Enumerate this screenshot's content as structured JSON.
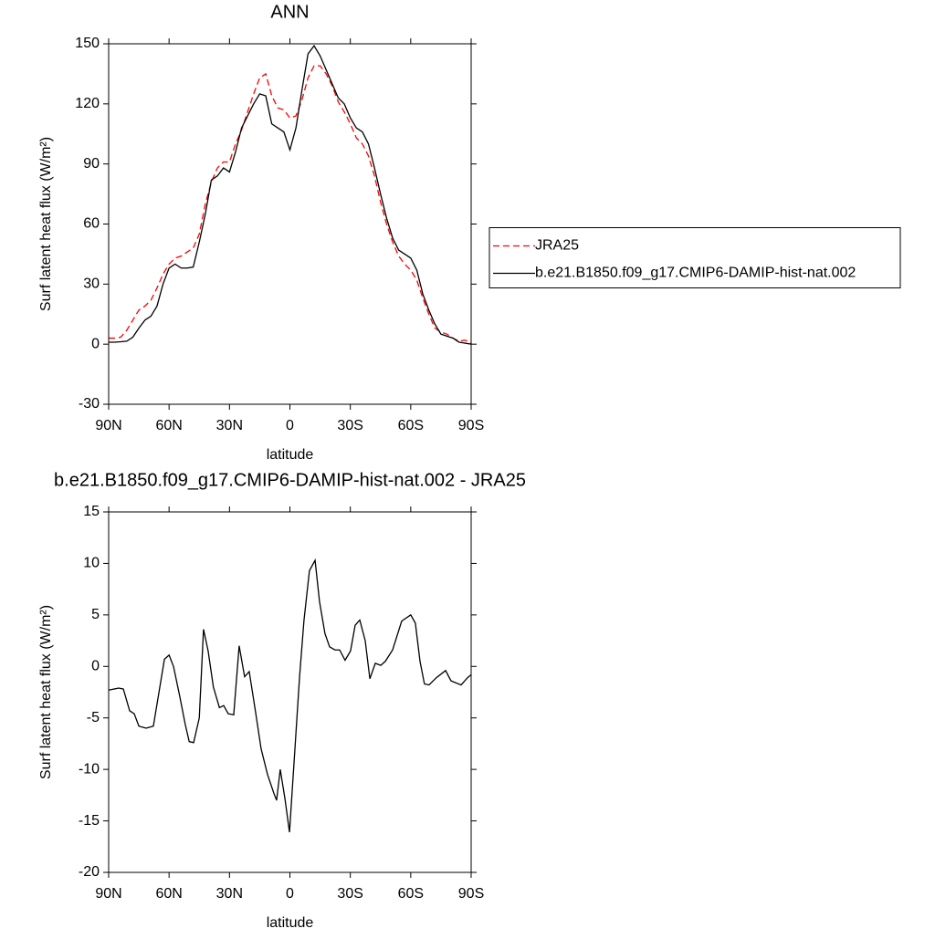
{
  "chart_data": [
    {
      "type": "line",
      "title": "ANN",
      "xlabel": "latitude",
      "ylabel": "Surf latent heat flux (W/m²)",
      "x": [
        90,
        87,
        84,
        81,
        78,
        75,
        72,
        69,
        66,
        63,
        60,
        57,
        54,
        51,
        48,
        45,
        42,
        39,
        36,
        33,
        30,
        27,
        24,
        21,
        18,
        15,
        12,
        9,
        6,
        3,
        0,
        -3,
        -6,
        -9,
        -12,
        -15,
        -18,
        -21,
        -24,
        -27,
        -30,
        -33,
        -36,
        -39,
        -42,
        -45,
        -48,
        -51,
        -54,
        -57,
        -60,
        -63,
        -66,
        -69,
        -72,
        -75,
        -78,
        -81,
        -84,
        -87,
        -90
      ],
      "xlim": [
        90,
        -90
      ],
      "xticks": [
        {
          "value": 90,
          "label": "90N"
        },
        {
          "value": 60,
          "label": "60N"
        },
        {
          "value": 30,
          "label": "30N"
        },
        0,
        {
          "value": -30,
          "label": "30S"
        },
        {
          "value": -60,
          "label": "60S"
        },
        {
          "value": -90,
          "label": "90S"
        }
      ],
      "ylim": [
        -30,
        150
      ],
      "yticks": [
        -30,
        0,
        30,
        60,
        90,
        120,
        150
      ],
      "legend": "right",
      "series": [
        {
          "name": "JRA25",
          "color": "#ff0000",
          "dash": true,
          "values": [
            3,
            3,
            3.5,
            7,
            12,
            17,
            19,
            22,
            28,
            35,
            40,
            43,
            44,
            46,
            48,
            55,
            70,
            81,
            88,
            91,
            91,
            100,
            107,
            116,
            125,
            133,
            135,
            124,
            118,
            117,
            113,
            114,
            122,
            133,
            139,
            139,
            135,
            129,
            121,
            116,
            110,
            103,
            100,
            94,
            84,
            71,
            60,
            51,
            44,
            40,
            37,
            32,
            23,
            15,
            8,
            6,
            5,
            3,
            1.5,
            2,
            0.5
          ]
        },
        {
          "name": "b.e21.B1850.f09_g17.CMIP6-DAMIP-hist-nat.002",
          "color": "#000000",
          "dash": false,
          "values": [
            1,
            1,
            1.2,
            1.5,
            3.5,
            8,
            12,
            14,
            19,
            30,
            38,
            40,
            38,
            38,
            38.5,
            51,
            65,
            82,
            84,
            88,
            86,
            96,
            108,
            114,
            120,
            125,
            124,
            110,
            108,
            106,
            97,
            108,
            127,
            145,
            149,
            144,
            137,
            130,
            123,
            120,
            113,
            108,
            106,
            100,
            88,
            75,
            63,
            53,
            47,
            45,
            43,
            37,
            25,
            17,
            10,
            5,
            4,
            3,
            1,
            0.5,
            0
          ]
        }
      ]
    },
    {
      "type": "line",
      "title": "b.e21.B1850.f09_g17.CMIP6-DAMIP-hist-nat.002 - JRA25",
      "xlabel": "latitude",
      "ylabel": "Surf latent heat flux (W/m²)",
      "x": [
        90,
        85,
        82.7,
        79.6,
        77.3,
        75,
        71.4,
        67.8,
        62.3,
        60,
        57.8,
        54.6,
        52,
        50,
        47.8,
        45,
        42.9,
        40.6,
        38,
        35,
        32.9,
        30.6,
        27.9,
        25.2,
        22.5,
        20.2,
        17,
        14.3,
        11.1,
        8,
        6.6,
        4.8,
        2.5,
        0.2,
        -2.5,
        -4.8,
        -7,
        -9.7,
        -12.5,
        -14.7,
        -17.4,
        -19.7,
        -22.4,
        -24.7,
        -27.4,
        -30.1,
        -32.4,
        -34.7,
        -37.4,
        -39.7,
        -42.4,
        -45.1,
        -47.4,
        -51,
        -55.5,
        -60,
        -62.3,
        -64.6,
        -66.8,
        -69.1,
        -72.7,
        -77.3,
        -80,
        -85,
        -88.2,
        -90
      ],
      "xlim": [
        90,
        -90
      ],
      "xticks": [
        {
          "value": 90,
          "label": "90N"
        },
        {
          "value": 60,
          "label": "60N"
        },
        {
          "value": 30,
          "label": "30N"
        },
        0,
        {
          "value": -30,
          "label": "30S"
        },
        {
          "value": -60,
          "label": "60S"
        },
        {
          "value": -90,
          "label": "90S"
        }
      ],
      "ylim": [
        -20,
        15
      ],
      "yticks": [
        -20,
        -15,
        -10,
        -5,
        0,
        5,
        10,
        15
      ],
      "series": [
        {
          "color": "#000000",
          "dash": false,
          "values": [
            -2.3,
            -2.1,
            -2.2,
            -4.3,
            -4.6,
            -5.8,
            -6,
            -5.8,
            0.7,
            1.1,
            0,
            -3,
            -5.6,
            -7.3,
            -7.4,
            -5,
            3.6,
            1.5,
            -2,
            -4,
            -3.8,
            -4.6,
            -4.7,
            2,
            -1,
            -0.5,
            -4.5,
            -8,
            -10.5,
            -12.3,
            -13,
            -10,
            -12.8,
            -16.1,
            -8,
            -1,
            4.5,
            9.3,
            10.3,
            6.3,
            3.2,
            1.9,
            1.6,
            1.6,
            0.6,
            1.5,
            4,
            4.5,
            2.5,
            -1.2,
            0.3,
            0.1,
            0.5,
            1.6,
            4.4,
            5,
            4.2,
            0.5,
            -1.7,
            -1.8,
            -1.1,
            -0.4,
            -1.4,
            -1.8,
            -1.1,
            -0.8
          ]
        }
      ]
    }
  ]
}
